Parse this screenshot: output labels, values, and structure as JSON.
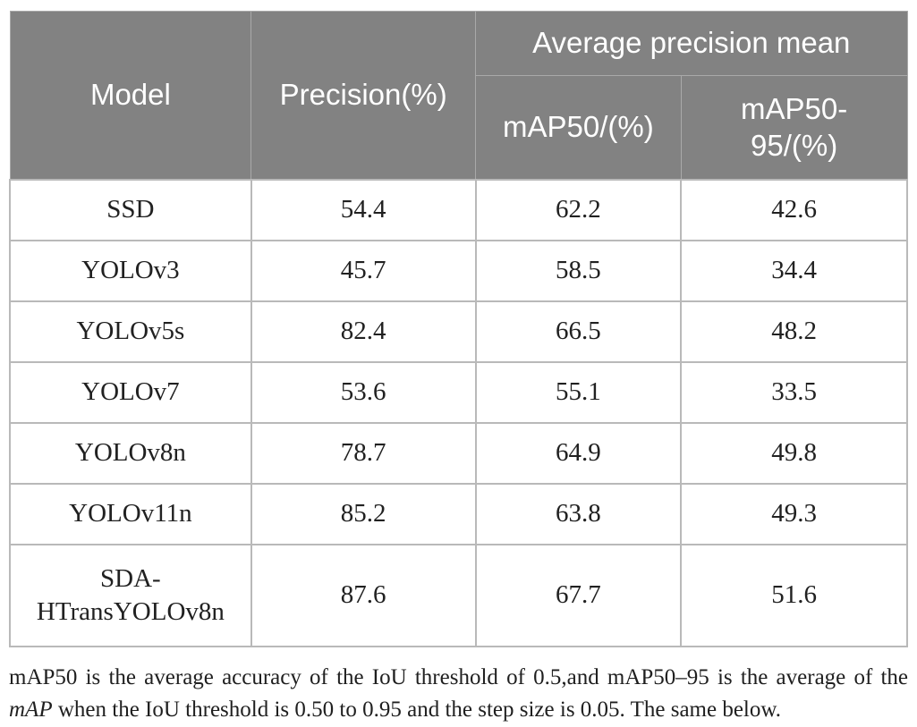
{
  "colors": {
    "header_background": "#828282",
    "header_text": "#ffffff",
    "body_border": "#b9b9b9",
    "body_text": "#212121"
  },
  "table": {
    "header": {
      "model": "Model",
      "precision": "Precision(%)",
      "group": "Average precision mean",
      "map50": "mAP50/(%)",
      "map50_95": "mAP50-95/(%)"
    },
    "rows": [
      {
        "model": "SSD",
        "precision": "54.4",
        "map50": "62.2",
        "map50_95": "42.6"
      },
      {
        "model": "YOLOv3",
        "precision": "45.7",
        "map50": "58.5",
        "map50_95": "34.4"
      },
      {
        "model": "YOLOv5s",
        "precision": "82.4",
        "map50": "66.5",
        "map50_95": "48.2"
      },
      {
        "model": "YOLOv7",
        "precision": "53.6",
        "map50": "55.1",
        "map50_95": "33.5"
      },
      {
        "model": "YOLOv8n",
        "precision": "78.7",
        "map50": "64.9",
        "map50_95": "49.8"
      },
      {
        "model": "YOLOv11n",
        "precision": "85.2",
        "map50": "63.8",
        "map50_95": "49.3"
      },
      {
        "model": "SDA-HTransYOLOv8n",
        "precision": "87.6",
        "map50": "67.7",
        "map50_95": "51.6"
      }
    ]
  },
  "footnote": {
    "parts": [
      {
        "text": "mAP50 is the average accuracy of the IoU threshold of 0.5,and mAP50–95 is the average of the ",
        "italic": false
      },
      {
        "text": "mAP",
        "italic": true
      },
      {
        "text": " when the IoU threshold is 0.50 to 0.95 and the step size is 0.05. The same below.",
        "italic": false
      }
    ]
  }
}
